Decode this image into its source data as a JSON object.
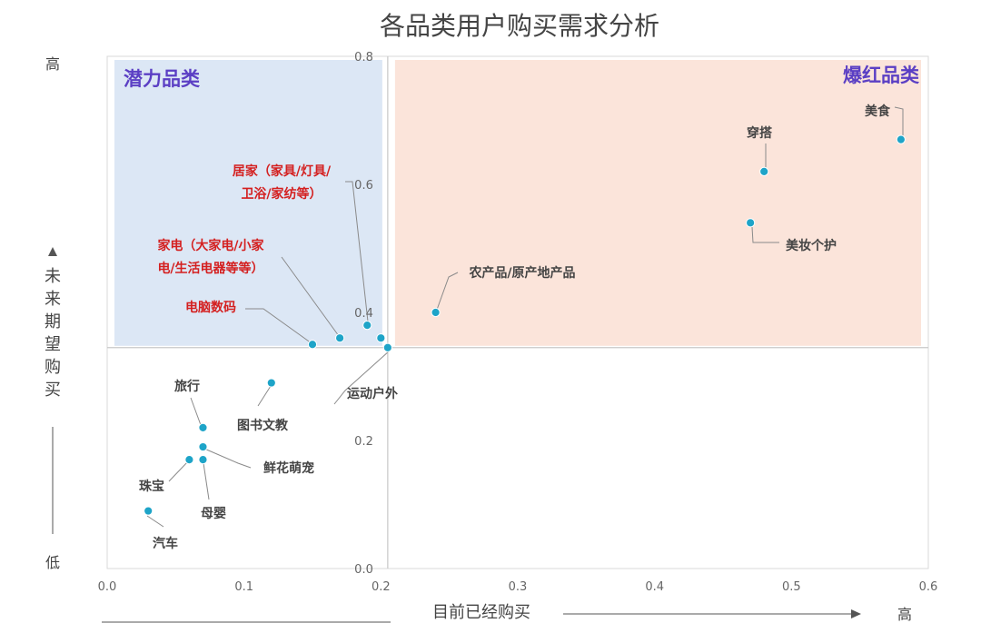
{
  "chart_data": {
    "type": "scatter",
    "title": "各品类用户购买需求分析",
    "xlabel": "目前已经购买",
    "ylabel": "未来期望购买",
    "x_high": "高",
    "y_high": "高",
    "y_low": "低",
    "xlim": [
      0,
      0.6
    ],
    "ylim": [
      0,
      0.8
    ],
    "x_ticks": [
      "0.0",
      "0.1",
      "0.2",
      "0.3",
      "0.4",
      "0.5",
      "0.6"
    ],
    "y_ticks": [
      "0.0",
      "0.2",
      "0.4",
      "0.6",
      "0.8"
    ],
    "divider": {
      "x": 0.205,
      "y": 0.345
    },
    "quadrants": [
      {
        "name": "潜力品类",
        "color": "#dce7f5",
        "text_color": "#5b3fc4"
      },
      {
        "name": "爆红品类",
        "color": "#fbe4da",
        "text_color": "#5b3fc4"
      }
    ],
    "point_color": "#1ea4c8",
    "points": [
      {
        "label": "美食",
        "x": 0.58,
        "y": 0.67,
        "color": "#444444"
      },
      {
        "label": "穿搭",
        "x": 0.48,
        "y": 0.62,
        "color": "#444444"
      },
      {
        "label": "美妆个护",
        "x": 0.47,
        "y": 0.54,
        "color": "#444444"
      },
      {
        "label": "农产品/原产地产品",
        "x": 0.24,
        "y": 0.4,
        "color": "#444444"
      },
      {
        "label": "居家（家具/灯具/|卫浴/家纺等）",
        "x": 0.19,
        "y": 0.38,
        "color": "#d42020"
      },
      {
        "label": "家电（大家电/小家|电/生活电器等等）",
        "x": 0.17,
        "y": 0.36,
        "color": "#d42020"
      },
      {
        "label": "电脑数码",
        "x": 0.15,
        "y": 0.35,
        "color": "#d42020"
      },
      {
        "label": "",
        "x": 0.2,
        "y": 0.36,
        "color": "#444444"
      },
      {
        "label": "运动户外",
        "x": 0.205,
        "y": 0.345,
        "color": "#444444"
      },
      {
        "label": "图书文教",
        "x": 0.12,
        "y": 0.29,
        "color": "#444444"
      },
      {
        "label": "旅行",
        "x": 0.07,
        "y": 0.22,
        "color": "#444444"
      },
      {
        "label": "鲜花萌宠",
        "x": 0.07,
        "y": 0.19,
        "color": "#444444"
      },
      {
        "label": "母婴",
        "x": 0.07,
        "y": 0.17,
        "color": "#444444"
      },
      {
        "label": "珠宝",
        "x": 0.06,
        "y": 0.17,
        "color": "#444444"
      },
      {
        "label": "汽车",
        "x": 0.03,
        "y": 0.09,
        "color": "#444444"
      }
    ]
  }
}
